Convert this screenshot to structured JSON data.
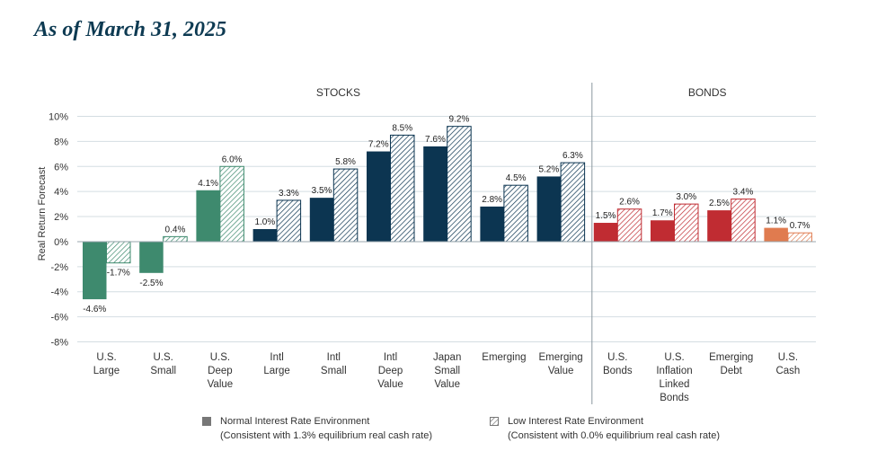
{
  "page": {
    "heading": "As of March 31, 2025"
  },
  "colors": {
    "stock_green": "#3e8a6e",
    "stock_navy": "#0c3551",
    "bond_red": "#c02c32",
    "cash_orange": "#e07b4f",
    "grid": "#d4dde2",
    "legend_gray": "#777777"
  },
  "chart_data": {
    "type": "bar",
    "ylabel": "Real Return Forecast",
    "ylim": [
      -8,
      10
    ],
    "yticks": [
      10,
      8,
      6,
      4,
      2,
      0,
      -2,
      -4,
      -6,
      -8
    ],
    "ytick_labels": [
      "10%",
      "8%",
      "6%",
      "4%",
      "2%",
      "0%",
      "-2%",
      "-4%",
      "-6%",
      "-8%"
    ],
    "grid": true,
    "groups": [
      {
        "label": "STOCKS",
        "start": 0,
        "end": 8
      },
      {
        "label": "BONDS",
        "start": 9,
        "end": 12
      }
    ],
    "categories": [
      {
        "lines": [
          "U.S.",
          "Large"
        ],
        "color_key": "stock_green",
        "normal": -4.6,
        "low": -1.7,
        "normal_label": "-4.6%",
        "low_label": "-1.7%"
      },
      {
        "lines": [
          "U.S.",
          "Small"
        ],
        "color_key": "stock_green",
        "normal": -2.5,
        "low": 0.4,
        "normal_label": "-2.5%",
        "low_label": "0.4%"
      },
      {
        "lines": [
          "U.S.",
          "Deep",
          "Value"
        ],
        "color_key": "stock_green",
        "normal": 4.1,
        "low": 6.0,
        "normal_label": "4.1%",
        "low_label": "6.0%"
      },
      {
        "lines": [
          "Intl",
          "Large"
        ],
        "color_key": "stock_navy",
        "normal": 1.0,
        "low": 3.3,
        "normal_label": "1.0%",
        "low_label": "3.3%"
      },
      {
        "lines": [
          "Intl",
          "Small"
        ],
        "color_key": "stock_navy",
        "normal": 3.5,
        "low": 5.8,
        "normal_label": "3.5%",
        "low_label": "5.8%"
      },
      {
        "lines": [
          "Intl",
          "Deep",
          "Value"
        ],
        "color_key": "stock_navy",
        "normal": 7.2,
        "low": 8.5,
        "normal_label": "7.2%",
        "low_label": "8.5%"
      },
      {
        "lines": [
          "Japan",
          "Small",
          "Value"
        ],
        "color_key": "stock_navy",
        "normal": 7.6,
        "low": 9.2,
        "normal_label": "7.6%",
        "low_label": "9.2%"
      },
      {
        "lines": [
          "Emerging"
        ],
        "color_key": "stock_navy",
        "normal": 2.8,
        "low": 4.5,
        "normal_label": "2.8%",
        "low_label": "4.5%"
      },
      {
        "lines": [
          "Emerging",
          "Value"
        ],
        "color_key": "stock_navy",
        "normal": 5.2,
        "low": 6.3,
        "normal_label": "5.2%",
        "low_label": "6.3%"
      },
      {
        "lines": [
          "U.S.",
          "Bonds"
        ],
        "color_key": "bond_red",
        "normal": 1.5,
        "low": 2.6,
        "normal_label": "1.5%",
        "low_label": "2.6%"
      },
      {
        "lines": [
          "U.S.",
          "Inflation",
          "Linked",
          "Bonds"
        ],
        "color_key": "bond_red",
        "normal": 1.7,
        "low": 3.0,
        "normal_label": "1.7%",
        "low_label": "3.0%"
      },
      {
        "lines": [
          "Emerging",
          "Debt"
        ],
        "color_key": "bond_red",
        "normal": 2.5,
        "low": 3.4,
        "normal_label": "2.5%",
        "low_label": "3.4%"
      },
      {
        "lines": [
          "U.S.",
          "Cash"
        ],
        "color_key": "cash_orange",
        "normal": 1.1,
        "low": 0.7,
        "normal_label": "1.1%",
        "low_label": "0.7%"
      }
    ],
    "series": [
      {
        "key": "normal",
        "name": "Normal Interest Rate Environment",
        "note": "(Consistent with 1.3% equilibrium real cash rate)",
        "pattern": "solid"
      },
      {
        "key": "low",
        "name": "Low Interest Rate Environment",
        "note": "(Consistent with 0.0% equilibrium real cash rate)",
        "pattern": "hatched"
      }
    ],
    "legend_position": "bottom"
  }
}
